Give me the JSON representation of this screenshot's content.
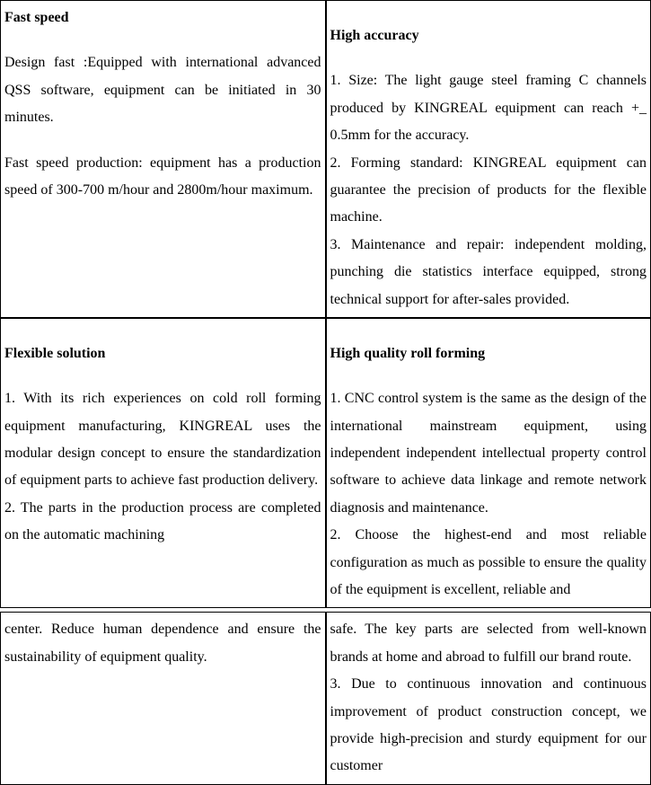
{
  "table1": {
    "row1": {
      "left": {
        "heading": "Fast speed",
        "para1": "Design fast :Equipped with international advanced QSS software, equipment can be initiated in 30 minutes.",
        "para2": "Fast speed production: equipment has a production speed of 300-700 m/hour and 2800m/hour maximum."
      },
      "right": {
        "heading": "High accuracy",
        "text": "1. Size: The light gauge steel framing C channels produced by KINGREAL equipment can reach +_ 0.5mm for the accuracy.\n2. Forming standard: KINGREAL equipment can guarantee the precision of products for the flexible machine.\n3. Maintenance and repair: independent molding, punching die statistics interface equipped, strong technical support for after-sales provided."
      }
    },
    "row2": {
      "left": {
        "heading": "Flexible solution",
        "text": "1. With its rich experiences on cold roll forming equipment manufacturing, KINGREAL uses the modular design concept to ensure the standardization of equipment parts to achieve fast production delivery.\n2. The parts in the production process are completed on the automatic machining"
      },
      "right": {
        "heading": "High quality roll forming",
        "text": "1. CNC control system is the same as the design of the international mainstream equipment, using independent independent intellectual property control software to achieve data linkage and remote network diagnosis and maintenance.\n2. Choose the highest-end and most reliable configuration as much as possible to ensure the quality of the equipment is excellent, reliable and"
      }
    }
  },
  "table2": {
    "row1": {
      "left": {
        "text": "center. Reduce human dependence and ensure the sustainability of equipment quality."
      },
      "right": {
        "text": "safe. The key parts are selected from well-known brands at home and abroad to fulfill our brand route.\n3. Due to continuous innovation and continuous improvement of product construction concept, we provide high-precision and sturdy equipment for our customer"
      }
    }
  },
  "colors": {
    "text": "#000000",
    "background": "#ffffff",
    "border": "#000000"
  },
  "typography": {
    "font_family": "Times New Roman",
    "font_size": 16,
    "line_height": 1.9
  }
}
